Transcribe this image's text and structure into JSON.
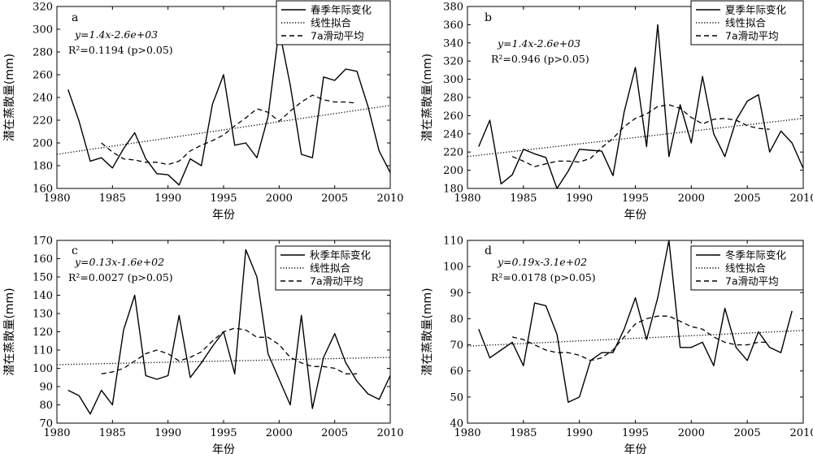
{
  "chart_data": [
    {
      "type": "line",
      "panel_label": "a",
      "xlabel": "年份",
      "ylabel": "潜在蒸散量(mm)",
      "xlim": [
        1980,
        2010
      ],
      "ylim": [
        160,
        320
      ],
      "xticks": [
        1980,
        1985,
        1990,
        1995,
        2000,
        2005,
        2010
      ],
      "yticks": [
        160,
        180,
        200,
        220,
        240,
        260,
        280,
        300,
        320
      ],
      "equation": "y=1.4x-2.6e+03",
      "r2": "R²=0.1194",
      "significance": "(p>0.05)",
      "legend_position": "top-right",
      "series": [
        {
          "name": "春季年际变化",
          "style": "solid",
          "x": [
            1981,
            1982,
            1983,
            1984,
            1985,
            1986,
            1987,
            1988,
            1989,
            1990,
            1991,
            1992,
            1993,
            1994,
            1995,
            1996,
            1997,
            1998,
            1999,
            2000,
            2001,
            2002,
            2003,
            2004,
            2005,
            2006,
            2007,
            2008,
            2009,
            2010
          ],
          "y": [
            247,
            219,
            184,
            187,
            178,
            195,
            209,
            186,
            173,
            172,
            163,
            186,
            180,
            234,
            260,
            198,
            200,
            187,
            223,
            300,
            251,
            190,
            187,
            258,
            255,
            265,
            263,
            232,
            193,
            174
          ]
        },
        {
          "name": "线性拟合",
          "style": "dotted",
          "x": [
            1980,
            2010
          ],
          "y": [
            190,
            233
          ]
        },
        {
          "name": "7a滑动平均",
          "style": "dashed",
          "x": [
            1984,
            1985,
            1986,
            1987,
            1988,
            1989,
            1990,
            1991,
            1992,
            1993,
            1994,
            1995,
            1996,
            1997,
            1998,
            1999,
            2000,
            2001,
            2002,
            2003,
            2004,
            2005,
            2006,
            2007
          ],
          "y": [
            200,
            192,
            186,
            185,
            183,
            183,
            181,
            184,
            193,
            198,
            202,
            207,
            215,
            222,
            230,
            227,
            219,
            228,
            236,
            242,
            238,
            236,
            236,
            235
          ]
        }
      ]
    },
    {
      "type": "line",
      "panel_label": "b",
      "xlabel": "年份",
      "ylabel": "潜在蒸散量(mm)",
      "xlim": [
        1980,
        2010
      ],
      "ylim": [
        180,
        380
      ],
      "xticks": [
        1980,
        1985,
        1990,
        1995,
        2000,
        2005,
        2010
      ],
      "yticks": [
        180,
        200,
        220,
        240,
        260,
        280,
        300,
        320,
        340,
        360,
        380
      ],
      "equation": "y=1.4x-2.6e+03",
      "r2": "R²=0.946",
      "significance": "(p>0.05)",
      "legend_position": "top-right",
      "series": [
        {
          "name": "夏季年际变化",
          "style": "solid",
          "x": [
            1981,
            1982,
            1983,
            1984,
            1985,
            1986,
            1987,
            1988,
            1989,
            1990,
            1991,
            1992,
            1993,
            1994,
            1995,
            1996,
            1997,
            1998,
            1999,
            2000,
            2001,
            2002,
            2003,
            2004,
            2005,
            2006,
            2007,
            2008,
            2009,
            2010
          ],
          "y": [
            226,
            255,
            185,
            195,
            223,
            218,
            214,
            180,
            199,
            223,
            222,
            221,
            194,
            264,
            313,
            226,
            360,
            215,
            272,
            230,
            303,
            240,
            215,
            255,
            276,
            283,
            220,
            243,
            230,
            202
          ]
        },
        {
          "name": "线性拟合",
          "style": "dotted",
          "x": [
            1980,
            2010
          ],
          "y": [
            215,
            257
          ]
        },
        {
          "name": "7a滑动平均",
          "style": "dashed",
          "x": [
            1984,
            1985,
            1986,
            1987,
            1988,
            1989,
            1990,
            1991,
            1992,
            1993,
            1994,
            1995,
            1996,
            1997,
            1998,
            1999,
            2000,
            2001,
            2002,
            2003,
            2004,
            2005,
            2006,
            2007
          ],
          "y": [
            215,
            210,
            204,
            207,
            210,
            210,
            209,
            213,
            225,
            235,
            248,
            257,
            262,
            270,
            272,
            268,
            258,
            251,
            256,
            257,
            255,
            249,
            246,
            245
          ]
        }
      ]
    },
    {
      "type": "line",
      "panel_label": "c",
      "xlabel": "年份",
      "ylabel": "潜在蒸散量(mm)",
      "xlim": [
        1980,
        2010
      ],
      "ylim": [
        70,
        170
      ],
      "xticks": [
        1980,
        1985,
        1990,
        1995,
        2000,
        2005,
        2010
      ],
      "yticks": [
        70,
        80,
        90,
        100,
        110,
        120,
        130,
        140,
        150,
        160,
        170
      ],
      "equation": "y=0.13x-1.6e+02",
      "r2": "R²=0.0027",
      "significance": "(p>0.05)",
      "legend_position": "top-right",
      "series": [
        {
          "name": "秋季年际变化",
          "style": "solid",
          "x": [
            1981,
            1982,
            1983,
            1984,
            1985,
            1986,
            1987,
            1988,
            1989,
            1990,
            1991,
            1992,
            1993,
            1994,
            1995,
            1996,
            1997,
            1998,
            1999,
            2000,
            2001,
            2002,
            2003,
            2004,
            2005,
            2006,
            2007,
            2008,
            2009,
            2010
          ],
          "y": [
            88,
            85,
            75,
            88,
            80,
            121,
            140,
            96,
            94,
            96,
            129,
            95,
            103,
            112,
            120,
            97,
            165,
            150,
            108,
            94,
            80,
            129,
            78,
            106,
            119,
            103,
            93,
            86,
            83,
            96
          ]
        },
        {
          "name": "线性拟合",
          "style": "dotted",
          "x": [
            1980,
            2010
          ],
          "y": [
            102,
            106
          ]
        },
        {
          "name": "7a滑动平均",
          "style": "dashed",
          "x": [
            1984,
            1985,
            1986,
            1987,
            1988,
            1989,
            1990,
            1991,
            1992,
            1993,
            1994,
            1995,
            1996,
            1997,
            1998,
            1999,
            2000,
            2001,
            2002,
            2003,
            2004,
            2005,
            2006,
            2007
          ],
          "y": [
            97,
            98,
            100,
            104,
            108,
            110,
            108,
            104,
            106,
            109,
            115,
            120,
            122,
            121,
            117,
            117,
            113,
            106,
            103,
            101,
            101,
            100,
            97,
            97
          ]
        }
      ]
    },
    {
      "type": "line",
      "panel_label": "d",
      "xlabel": "年份",
      "ylabel": "潜在蒸散量(mm)",
      "xlim": [
        1980,
        2010
      ],
      "ylim": [
        40,
        110
      ],
      "xticks": [
        1980,
        1985,
        1990,
        1995,
        2000,
        2005,
        2010
      ],
      "yticks": [
        40,
        50,
        60,
        70,
        80,
        90,
        100,
        110
      ],
      "equation": "y=0.19x-3.1e+02",
      "r2": "R²=0.0178",
      "significance": "(p>0.05)",
      "legend_position": "top-right",
      "series": [
        {
          "name": "冬季年际变化",
          "style": "solid",
          "x": [
            1981,
            1982,
            1983,
            1984,
            1985,
            1986,
            1987,
            1988,
            1989,
            1990,
            1991,
            1992,
            1993,
            1994,
            1995,
            1996,
            1997,
            1998,
            1999,
            2000,
            2001,
            2002,
            2003,
            2004,
            2005,
            2006,
            2007,
            2008,
            2009
          ],
          "y": [
            76,
            65,
            68,
            71,
            62,
            86,
            85,
            74,
            48,
            50,
            64,
            67,
            67,
            76,
            88,
            72,
            88,
            110,
            69,
            69,
            71,
            62,
            84,
            69,
            64,
            75,
            69,
            67,
            83
          ]
        },
        {
          "name": "线性拟合",
          "style": "dotted",
          "x": [
            1980,
            2010
          ],
          "y": [
            69.5,
            75.5
          ]
        },
        {
          "name": "7a滑动平均",
          "style": "dashed",
          "x": [
            1984,
            1985,
            1986,
            1987,
            1988,
            1989,
            1990,
            1991,
            1992,
            1993,
            1994,
            1995,
            1996,
            1997,
            1998,
            1999,
            2000,
            2001,
            2002,
            2003,
            2004,
            2005,
            2006,
            2007
          ],
          "y": [
            73,
            72,
            70,
            68,
            67,
            67,
            66,
            64,
            65,
            68,
            73,
            78,
            80,
            81,
            81,
            79,
            77,
            76,
            73,
            71,
            70,
            70,
            71,
            71
          ]
        }
      ]
    }
  ]
}
